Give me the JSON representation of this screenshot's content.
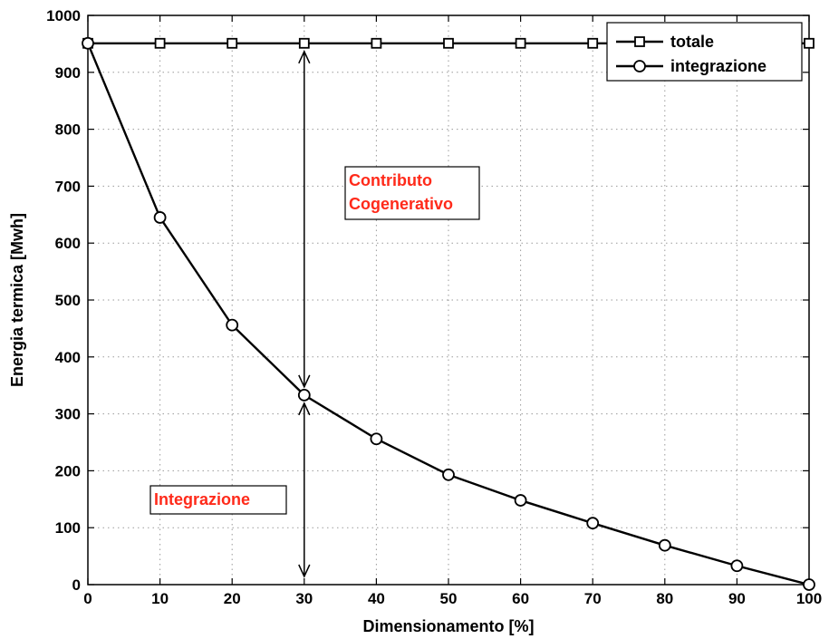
{
  "chart_data": {
    "type": "line",
    "title": "",
    "xlabel": "Dimensionamento [%]",
    "ylabel": "Energia termica [Mwh]",
    "xlim": [
      0,
      100
    ],
    "ylim": [
      0,
      1000
    ],
    "xticks": [
      0,
      10,
      20,
      30,
      40,
      50,
      60,
      70,
      80,
      90,
      100
    ],
    "yticks": [
      0,
      100,
      200,
      300,
      400,
      500,
      600,
      700,
      800,
      900,
      1000
    ],
    "grid": true,
    "legend_position": "top-right",
    "x": [
      0,
      10,
      20,
      30,
      40,
      50,
      60,
      70,
      80,
      90,
      100
    ],
    "series": [
      {
        "name": "totale",
        "marker": "square",
        "values": [
          951,
          951,
          951,
          951,
          951,
          951,
          951,
          951,
          951,
          951,
          951
        ]
      },
      {
        "name": "integrazione",
        "marker": "circle",
        "values": [
          951,
          645,
          456,
          333,
          256,
          193,
          148,
          108,
          69,
          33,
          0
        ]
      }
    ],
    "annotations": [
      {
        "text": "Contributo\nCogenerativo",
        "color": "#ff2a1a",
        "arrow": {
          "x": 30,
          "from": 951,
          "to": 333
        }
      },
      {
        "text": "Integrazione",
        "color": "#ff2a1a",
        "arrow": {
          "x": 30,
          "from": 333,
          "to": 0
        }
      }
    ]
  }
}
